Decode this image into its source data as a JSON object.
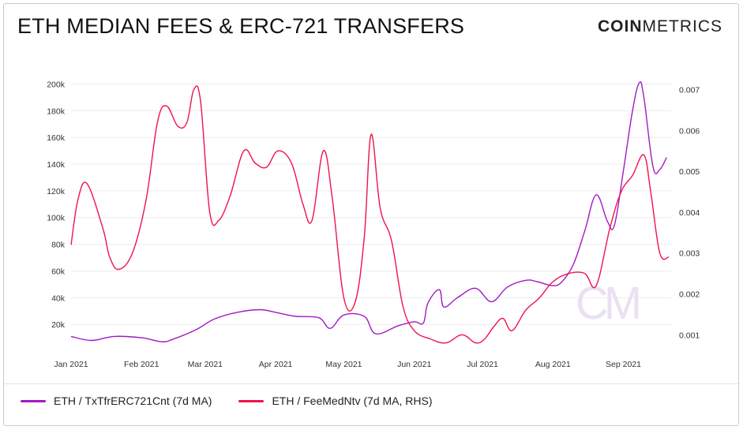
{
  "header": {
    "title": "ETH MEDIAN FEES & ERC-721 TRANSFERS",
    "brand_bold": "COIN",
    "brand_light": "METRICS"
  },
  "watermark": "CM",
  "colors": {
    "series1": "#a11ac4",
    "series2": "#f0124a",
    "grid": "#ececec"
  },
  "legend": [
    {
      "label": "ETH / TxTfrERC721Cnt (7d MA)",
      "color": "#a11ac4"
    },
    {
      "label": "ETH / FeeMedNtv (7d MA, RHS)",
      "color": "#f0124a"
    }
  ],
  "chart_data": {
    "type": "line",
    "title": "ETH MEDIAN FEES & ERC-721 TRANSFERS",
    "xlabel": "",
    "ylabel": "",
    "x_ticks": [
      "Jan 2021",
      "Feb 2021",
      "Mar 2021",
      "Apr 2021",
      "May 2021",
      "Jun 2021",
      "Jul 2021",
      "Aug 2021",
      "Sep 2021"
    ],
    "y_left_ticks": [
      "20k",
      "40k",
      "60k",
      "80k",
      "100k",
      "120k",
      "140k",
      "160k",
      "180k",
      "200k"
    ],
    "y_right_ticks": [
      "0.001",
      "0.002",
      "0.003",
      "0.004",
      "0.005",
      "0.006",
      "0.007"
    ],
    "ylim_left": [
      0,
      205000
    ],
    "ylim_right": [
      0.0006,
      0.0073
    ],
    "grid": true,
    "legend_position": "bottom-left",
    "series": [
      {
        "name": "ETH / TxTfrERC721Cnt (7d MA)",
        "axis": "left",
        "x": [
          "2021-01-01",
          "2021-01-10",
          "2021-01-20",
          "2021-02-01",
          "2021-02-10",
          "2021-02-15",
          "2021-02-25",
          "2021-03-05",
          "2021-03-15",
          "2021-03-25",
          "2021-04-01",
          "2021-04-10",
          "2021-04-20",
          "2021-04-25",
          "2021-05-01",
          "2021-05-10",
          "2021-05-15",
          "2021-05-25",
          "2021-06-01",
          "2021-06-05",
          "2021-06-07",
          "2021-06-12",
          "2021-06-14",
          "2021-06-20",
          "2021-06-28",
          "2021-07-05",
          "2021-07-12",
          "2021-07-20",
          "2021-07-25",
          "2021-08-01",
          "2021-08-05",
          "2021-08-10",
          "2021-08-15",
          "2021-08-20",
          "2021-08-25",
          "2021-08-28",
          "2021-09-01",
          "2021-09-05",
          "2021-09-08",
          "2021-09-10",
          "2021-09-14",
          "2021-09-17",
          "2021-09-20"
        ],
        "values": [
          11000,
          8000,
          11000,
          10000,
          7000,
          9000,
          16000,
          24000,
          29000,
          31000,
          29000,
          26000,
          25000,
          17000,
          27000,
          26000,
          13000,
          19000,
          22000,
          21000,
          36000,
          46000,
          33000,
          40000,
          47000,
          37000,
          48000,
          53000,
          52000,
          49000,
          52000,
          65000,
          90000,
          117000,
          97000,
          94000,
          135000,
          180000,
          201000,
          190000,
          138000,
          136000,
          145000
        ]
      },
      {
        "name": "ETH / FeeMedNtv (7d MA, RHS)",
        "axis": "right",
        "x": [
          "2021-01-01",
          "2021-01-04",
          "2021-01-08",
          "2021-01-15",
          "2021-01-18",
          "2021-01-22",
          "2021-01-28",
          "2021-02-03",
          "2021-02-08",
          "2021-02-12",
          "2021-02-17",
          "2021-02-21",
          "2021-02-24",
          "2021-02-27",
          "2021-03-03",
          "2021-03-07",
          "2021-03-12",
          "2021-03-18",
          "2021-03-23",
          "2021-03-28",
          "2021-04-02",
          "2021-04-08",
          "2021-04-13",
          "2021-04-17",
          "2021-04-22",
          "2021-04-26",
          "2021-05-01",
          "2021-05-06",
          "2021-05-10",
          "2021-05-13",
          "2021-05-17",
          "2021-05-22",
          "2021-05-27",
          "2021-06-01",
          "2021-06-08",
          "2021-06-15",
          "2021-06-22",
          "2021-06-28",
          "2021-07-02",
          "2021-07-06",
          "2021-07-10",
          "2021-07-14",
          "2021-07-20",
          "2021-07-26",
          "2021-08-01",
          "2021-08-08",
          "2021-08-15",
          "2021-08-20",
          "2021-08-26",
          "2021-08-31",
          "2021-09-05",
          "2021-09-10",
          "2021-09-13",
          "2021-09-17",
          "2021-09-21"
        ],
        "values": [
          0.0032,
          0.0043,
          0.0047,
          0.0036,
          0.0029,
          0.0026,
          0.003,
          0.0043,
          0.0062,
          0.0066,
          0.0061,
          0.0062,
          0.007,
          0.0067,
          0.004,
          0.0038,
          0.0044,
          0.0055,
          0.0052,
          0.0051,
          0.0055,
          0.0052,
          0.0042,
          0.0038,
          0.0055,
          0.0043,
          0.0019,
          0.0018,
          0.0034,
          0.0059,
          0.0041,
          0.0033,
          0.0017,
          0.0011,
          0.0009,
          0.0008,
          0.001,
          0.0008,
          0.0009,
          0.0012,
          0.0014,
          0.0011,
          0.0016,
          0.0019,
          0.0023,
          0.0025,
          0.0025,
          0.0022,
          0.0036,
          0.0045,
          0.0049,
          0.0054,
          0.0045,
          0.003,
          0.0029
        ]
      }
    ]
  }
}
